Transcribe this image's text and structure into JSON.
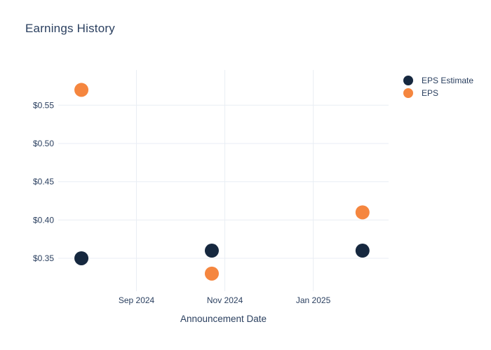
{
  "title": "Earnings History",
  "colors": {
    "text": "#2a3f5f",
    "grid": "#e9eef4",
    "background": "#ffffff",
    "eps_estimate_marker": "#16283f",
    "eps_marker": "#f5863f"
  },
  "chart_data": {
    "type": "scatter",
    "title": "Earnings History",
    "xlabel": "Announcement Date",
    "ylabel": "",
    "grid": true,
    "legend_position": "top-right",
    "x_domain": [
      "2024-07-09",
      "2025-02-22"
    ],
    "x_ticks": [
      {
        "date": "2024-09-01",
        "label": "Sep 2024"
      },
      {
        "date": "2024-11-01",
        "label": "Nov 2024"
      },
      {
        "date": "2025-01-01",
        "label": "Jan 2025"
      }
    ],
    "y_domain": [
      0.307,
      0.596
    ],
    "y_ticks": [
      {
        "value": 0.35,
        "label": "$0.35"
      },
      {
        "value": 0.4,
        "label": "$0.40"
      },
      {
        "value": 0.45,
        "label": "$0.45"
      },
      {
        "value": 0.5,
        "label": "$0.50"
      },
      {
        "value": 0.55,
        "label": "$0.55"
      }
    ],
    "series": [
      {
        "name": "EPS Estimate",
        "color": "#16283f",
        "points": [
          {
            "x": "2024-07-25",
            "y": 0.35
          },
          {
            "x": "2024-10-23",
            "y": 0.36
          },
          {
            "x": "2025-02-04",
            "y": 0.36
          }
        ]
      },
      {
        "name": "EPS",
        "color": "#f5863f",
        "points": [
          {
            "x": "2024-07-25",
            "y": 0.57
          },
          {
            "x": "2024-10-23",
            "y": 0.33
          },
          {
            "x": "2025-02-04",
            "y": 0.41
          }
        ]
      }
    ]
  }
}
